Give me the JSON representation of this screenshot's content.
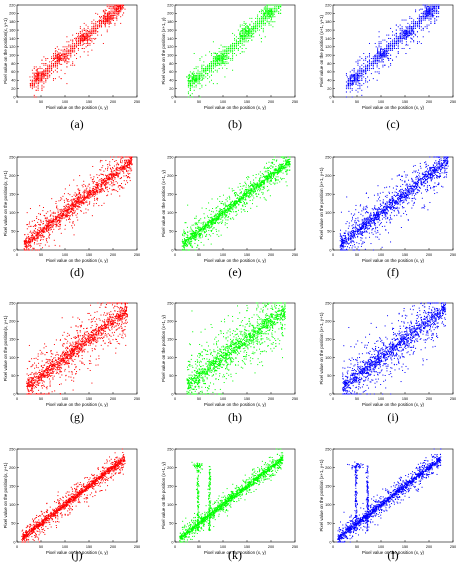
{
  "figure": {
    "colors": {
      "red": "#ff0000",
      "green": "#00ff00",
      "blue": "#0000ff"
    },
    "axis_line_color": "#000000"
  },
  "chart_data": [
    {
      "id": "a",
      "caption": "(a)",
      "type": "scatter",
      "color": "#ff0000",
      "xlabel": "Pixel value on the position (x, y)",
      "ylabel": "Pixel value on the position(x, y+1)",
      "xlim": [
        0,
        250
      ],
      "ylim": [
        0,
        220
      ],
      "xticks": [
        0,
        50,
        100,
        150,
        200,
        250
      ],
      "yticks": [
        0,
        20,
        40,
        60,
        80,
        100,
        120,
        140,
        160,
        180,
        200,
        220
      ],
      "series": [
        {
          "pattern": "blocky-diagonal",
          "x_range": [
            28,
            222
          ],
          "spread": 18,
          "cluster_centers": [
            [
              45,
              50
            ],
            [
              90,
              95
            ],
            [
              140,
              140
            ],
            [
              190,
              190
            ],
            [
              210,
              215
            ]
          ]
        }
      ]
    },
    {
      "id": "b",
      "caption": "(b)",
      "type": "scatter",
      "color": "#00ff00",
      "xlabel": "Pixel value on the position (x, y)",
      "ylabel": "Pixel value on the position (x+1, y)",
      "xlim": [
        0,
        250
      ],
      "ylim": [
        0,
        220
      ],
      "xticks": [
        0,
        50,
        100,
        150,
        200,
        250
      ],
      "yticks": [
        0,
        20,
        40,
        60,
        80,
        100,
        120,
        140,
        160,
        180,
        200,
        220
      ],
      "series": [
        {
          "pattern": "blocky-diagonal",
          "x_range": [
            28,
            222
          ],
          "spread": 18,
          "cluster_centers": [
            [
              40,
              45
            ],
            [
              95,
              90
            ],
            [
              150,
              155
            ],
            [
              195,
              200
            ]
          ]
        }
      ]
    },
    {
      "id": "c",
      "caption": "(c)",
      "type": "scatter",
      "color": "#0000ff",
      "xlabel": "Pixel value on the position (x, y)",
      "ylabel": "Pixel value on the position (x+1, y+1)",
      "xlim": [
        0,
        250
      ],
      "ylim": [
        0,
        220
      ],
      "xticks": [
        0,
        50,
        100,
        150,
        200,
        250
      ],
      "yticks": [
        0,
        20,
        40,
        60,
        80,
        100,
        120,
        140,
        160,
        180,
        200,
        220
      ],
      "series": [
        {
          "pattern": "blocky-diagonal",
          "x_range": [
            28,
            222
          ],
          "spread": 20,
          "cluster_centers": [
            [
              45,
              45
            ],
            [
              100,
              100
            ],
            [
              155,
              150
            ],
            [
              200,
              205
            ]
          ]
        }
      ]
    },
    {
      "id": "d",
      "caption": "(d)",
      "type": "scatter",
      "color": "#ff0000",
      "xlabel": "Pixel value on the position (x, y)",
      "ylabel": "Pixel value on the position(x, y+1)",
      "xlim": [
        0,
        250
      ],
      "ylim": [
        0,
        250
      ],
      "xticks": [
        0,
        50,
        100,
        150,
        200,
        250
      ],
      "yticks": [
        0,
        50,
        100,
        150,
        200,
        250
      ],
      "series": [
        {
          "pattern": "diagonal",
          "x_range": [
            15,
            240
          ],
          "spread": 28
        }
      ]
    },
    {
      "id": "e",
      "caption": "(e)",
      "type": "scatter",
      "color": "#00ff00",
      "xlabel": "Pixel value on the position (x, y)",
      "ylabel": "Pixel value on the position (x+1, y)",
      "xlim": [
        0,
        250
      ],
      "ylim": [
        0,
        250
      ],
      "xticks": [
        0,
        50,
        100,
        150,
        200,
        250
      ],
      "yticks": [
        0,
        50,
        100,
        150,
        200,
        250
      ],
      "series": [
        {
          "pattern": "diagonal",
          "x_range": [
            15,
            240
          ],
          "spread": 22
        }
      ]
    },
    {
      "id": "f",
      "caption": "(f)",
      "type": "scatter",
      "color": "#0000ff",
      "xlabel": "Pixel value on the position (x, y)",
      "ylabel": "Pixel value on the position (x+1, y+1)",
      "xlim": [
        0,
        250
      ],
      "ylim": [
        0,
        250
      ],
      "xticks": [
        0,
        50,
        100,
        150,
        200,
        250
      ],
      "yticks": [
        0,
        50,
        100,
        150,
        200,
        250
      ],
      "series": [
        {
          "pattern": "diagonal",
          "x_range": [
            15,
            240
          ],
          "spread": 32
        }
      ]
    },
    {
      "id": "g",
      "caption": "(g)",
      "type": "scatter",
      "color": "#ff0000",
      "xlabel": "Pixel value on the position (x, y)",
      "ylabel": "Pixel value on the position(x, y+1)",
      "xlim": [
        0,
        250
      ],
      "ylim": [
        0,
        250
      ],
      "xticks": [
        0,
        50,
        100,
        150,
        200,
        250
      ],
      "yticks": [
        0,
        50,
        100,
        150,
        200,
        250
      ],
      "series": [
        {
          "pattern": "diagonal",
          "x_range": [
            20,
            230
          ],
          "spread": 38
        }
      ]
    },
    {
      "id": "h",
      "caption": "(h)",
      "type": "scatter",
      "color": "#00ff00",
      "xlabel": "Pixel value on the position (x, y)",
      "ylabel": "Pixel value on the position (x+1, y)",
      "xlim": [
        0,
        250
      ],
      "ylim": [
        0,
        250
      ],
      "xticks": [
        0,
        50,
        100,
        150,
        200,
        250
      ],
      "yticks": [
        0,
        50,
        100,
        150,
        200,
        250
      ],
      "series": [
        {
          "pattern": "diagonal",
          "x_range": [
            25,
            230
          ],
          "spread": 45
        }
      ]
    },
    {
      "id": "i",
      "caption": "(i)",
      "type": "scatter",
      "color": "#0000ff",
      "xlabel": "Pixel value on the position (x, y)",
      "ylabel": "Pixel value on the position (x+1, y+1)",
      "xlim": [
        0,
        250
      ],
      "ylim": [
        0,
        250
      ],
      "xticks": [
        0,
        50,
        100,
        150,
        200,
        250
      ],
      "yticks": [
        0,
        50,
        100,
        150,
        200,
        250
      ],
      "series": [
        {
          "pattern": "diagonal",
          "x_range": [
            20,
            235
          ],
          "spread": 42
        }
      ]
    },
    {
      "id": "j",
      "caption": "(j)",
      "type": "scatter",
      "color": "#ff0000",
      "xlabel": "Pixel value on the position (x, y)",
      "ylabel": "Pixel value on the position(x, y+1)",
      "xlim": [
        0,
        250
      ],
      "ylim": [
        0,
        250
      ],
      "xticks": [
        0,
        50,
        100,
        150,
        200,
        250
      ],
      "yticks": [
        0,
        50,
        100,
        150,
        200,
        250
      ],
      "series": [
        {
          "pattern": "diagonal",
          "x_range": [
            10,
            225
          ],
          "spread": 16
        }
      ]
    },
    {
      "id": "k",
      "caption": "(k)",
      "type": "scatter",
      "color": "#00ff00",
      "xlabel": "Pixel value on the position (x, y)",
      "ylabel": "Pixel value on the position (x+1, y)",
      "xlim": [
        0,
        250
      ],
      "ylim": [
        0,
        250
      ],
      "xticks": [
        0,
        50,
        100,
        150,
        200,
        250
      ],
      "yticks": [
        0,
        50,
        100,
        150,
        200,
        250
      ],
      "series": [
        {
          "pattern": "diagonal",
          "x_range": [
            10,
            225
          ],
          "spread": 14
        },
        {
          "pattern": "vertical-streaks",
          "x_values": [
            48,
            72
          ],
          "y_range": [
            30,
            205
          ]
        }
      ]
    },
    {
      "id": "l",
      "caption": "(l)",
      "type": "scatter",
      "color": "#0000ff",
      "xlabel": "Pixel value on the position (x, y)",
      "ylabel": "Pixel value on the position (x+1, y+1)",
      "xlim": [
        0,
        250
      ],
      "ylim": [
        0,
        250
      ],
      "xticks": [
        0,
        50,
        100,
        150,
        200,
        250
      ],
      "yticks": [
        0,
        50,
        100,
        150,
        200,
        250
      ],
      "series": [
        {
          "pattern": "diagonal",
          "x_range": [
            10,
            225
          ],
          "spread": 16
        },
        {
          "pattern": "vertical-streaks",
          "x_values": [
            48,
            72
          ],
          "y_range": [
            30,
            205
          ]
        }
      ]
    }
  ]
}
